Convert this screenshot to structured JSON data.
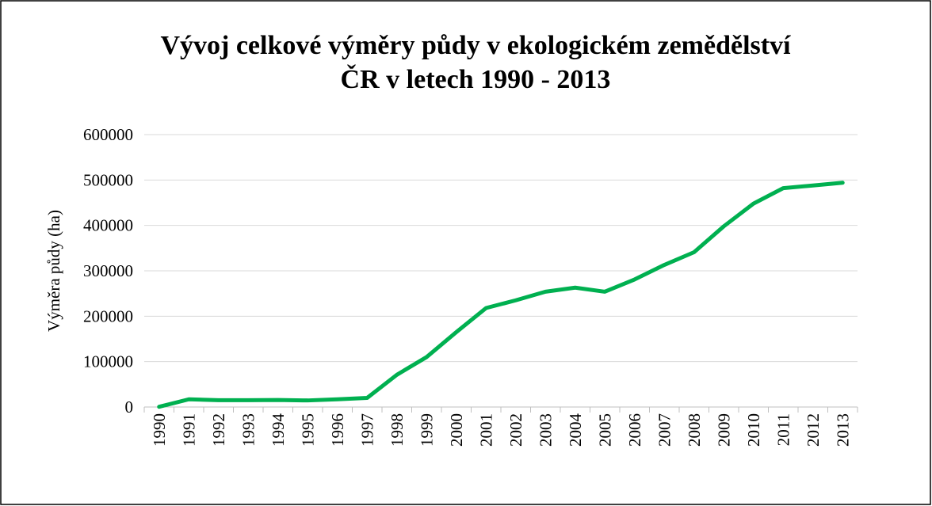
{
  "chart_data": {
    "type": "line",
    "title": [
      "Vývoj celkové výměry půdy v ekologickém zemědělství",
      "ČR v letech 1990 - 2013"
    ],
    "y_label": "Výměra půdy (ha)",
    "categories": [
      "1990",
      "1991",
      "1992",
      "1993",
      "1994",
      "1995",
      "1996",
      "1997",
      "1998",
      "1999",
      "2000",
      "2001",
      "2002",
      "2003",
      "2004",
      "2005",
      "2006",
      "2007",
      "2008",
      "2009",
      "2010",
      "2011",
      "2012",
      "2013"
    ],
    "series": [
      {
        "name": "Výměra půdy",
        "color": "#00b050",
        "values": [
          480,
          17000,
          15000,
          15000,
          15500,
          14500,
          17000,
          20000,
          71000,
          110000,
          165000,
          218000,
          235000,
          254000,
          263000,
          254000,
          281000,
          313000,
          341000,
          398000,
          448000,
          482000,
          488000,
          494000
        ]
      }
    ],
    "ylim": [
      0,
      600000
    ],
    "yticks": [
      0,
      100000,
      200000,
      300000,
      400000,
      500000,
      600000
    ],
    "grid": true
  }
}
